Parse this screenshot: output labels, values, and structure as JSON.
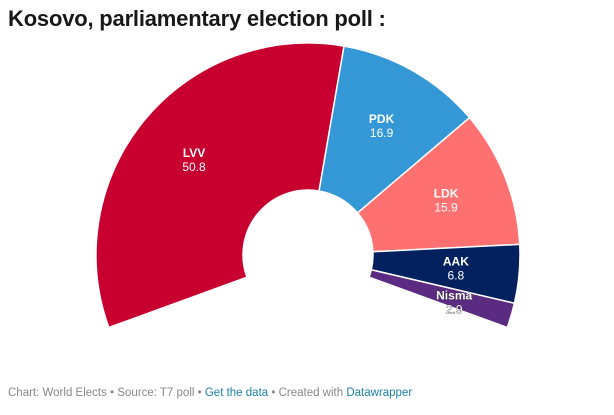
{
  "title": "Kosovo, parliamentary election poll :",
  "footer": {
    "chart_prefix": "Chart: ",
    "chart_by": "World Elects",
    "sep1": " • ",
    "source_prefix": "Source: ",
    "source": "T7 poll",
    "sep2": " • ",
    "get_data": "Get the data",
    "sep3": " • ",
    "created_prefix": "Created with ",
    "created_with": "Datawrapper"
  },
  "colors": {
    "LVV": "#c8002f",
    "PDK": "#3598d6",
    "LDK": "#ff7171",
    "AAK": "#04215f",
    "Nisma": "#5b2b82"
  },
  "chart_data": {
    "type": "pie",
    "variant": "semicircle-donut",
    "title": "Kosovo, parliamentary election poll :",
    "categories": [
      "LVV",
      "PDK",
      "LDK",
      "AAK",
      "Nisma"
    ],
    "values": [
      50.8,
      16.9,
      15.9,
      6.8,
      2.9
    ]
  }
}
